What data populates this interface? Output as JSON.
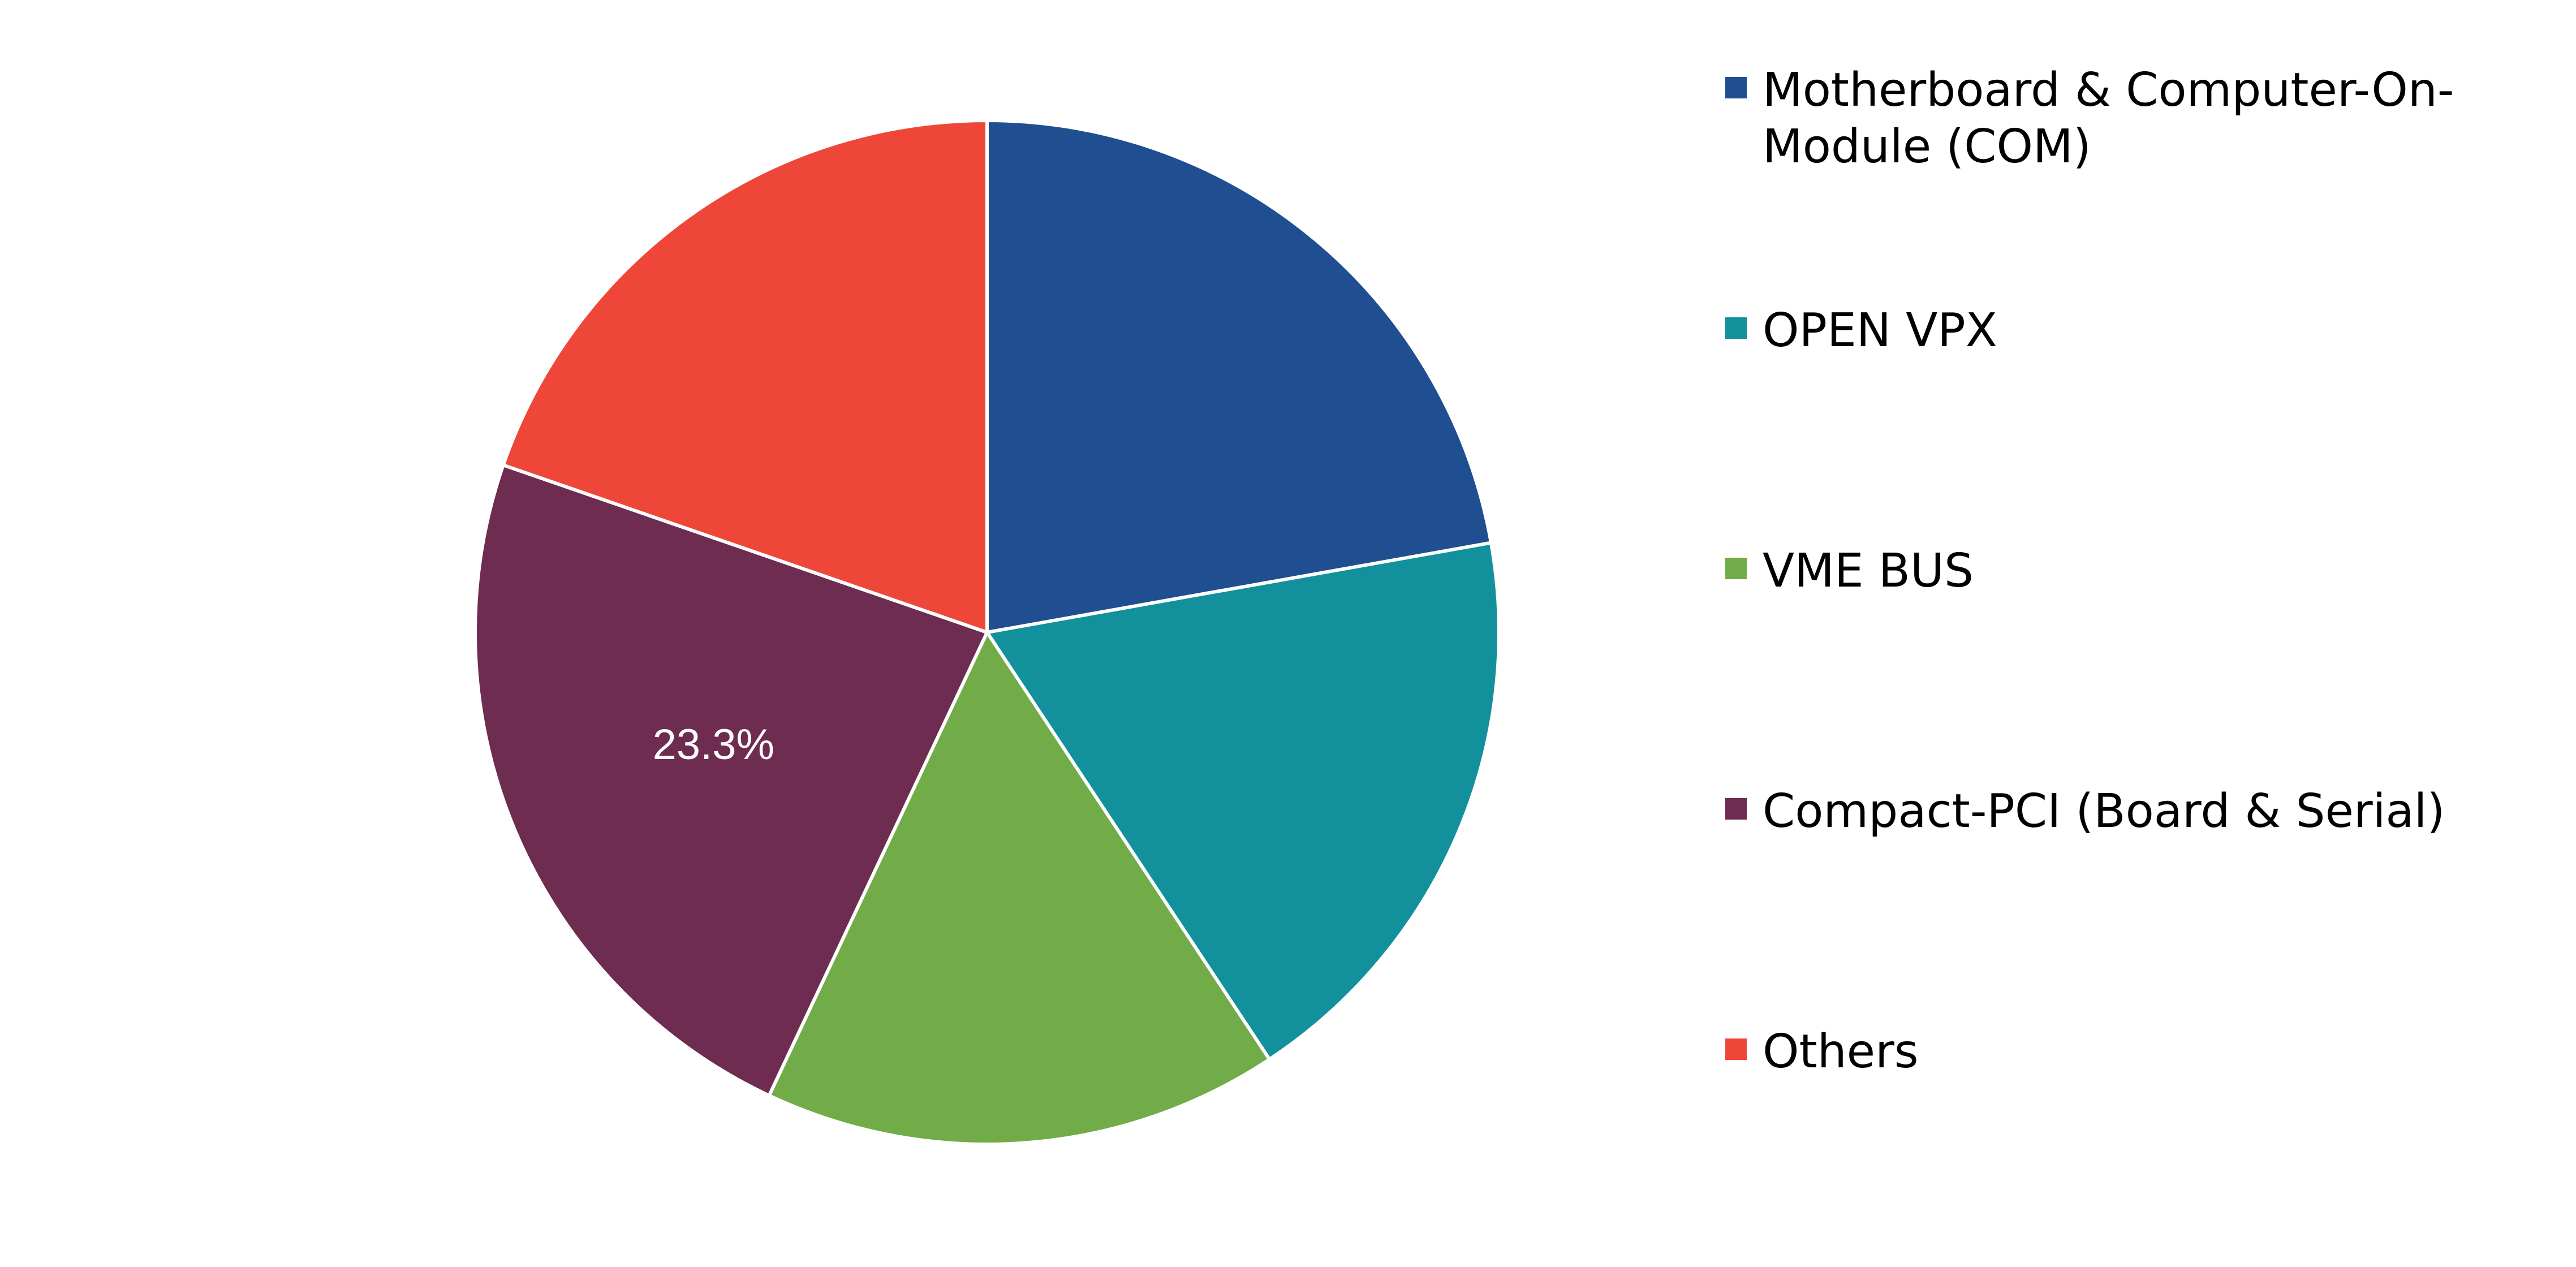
{
  "chart_data": {
    "type": "pie",
    "title": "",
    "series": [
      {
        "categories": [
          "Motherboard & Computer-On-Module (COM)",
          "OPEN VPX",
          "VME BUS",
          "Compact-PCI (Board & Serial)",
          "Others"
        ],
        "values": [
          22.2,
          18.5,
          16.3,
          23.3,
          19.7
        ],
        "colors": [
          "#1F4E91",
          "#12919D",
          "#72AC48",
          "#6D2C50",
          "#EE4739"
        ],
        "data_labels": [
          "",
          "",
          "",
          "23.3%",
          ""
        ]
      }
    ],
    "start_angle": "12 o'clock",
    "direction": "clockwise",
    "legend": {
      "position": "right",
      "entries": [
        {
          "label": "Motherboard & Computer-On-Module (COM)",
          "color": "#1F4E91"
        },
        {
          "label": "OPEN VPX",
          "color": "#12919D"
        },
        {
          "label": "VME BUS",
          "color": "#72AC48"
        },
        {
          "label": "Compact-PCI (Board & Serial)",
          "color": "#6D2C50"
        },
        {
          "label": "Others",
          "color": "#EE4739"
        }
      ]
    }
  }
}
